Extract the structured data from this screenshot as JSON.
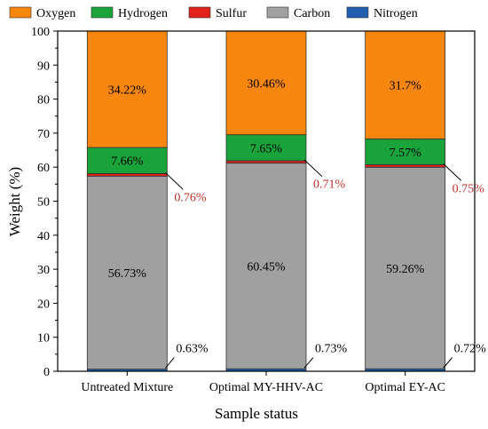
{
  "chart_data": {
    "type": "bar",
    "stacked": true,
    "title": "",
    "xlabel": "Sample status",
    "ylabel": "Weight (%)",
    "ylim": [
      0,
      100
    ],
    "yticks": [
      0,
      10,
      20,
      30,
      40,
      50,
      60,
      70,
      80,
      90,
      100
    ],
    "categories": [
      "Untreated Mixture",
      "Optimal MY-HHV-AC",
      "Optimal EY-AC"
    ],
    "legend": {
      "position": "top",
      "order": [
        "Oxygen",
        "Hydrogen",
        "Sulfur",
        "Carbon",
        "Nitrogen"
      ]
    },
    "series": [
      {
        "name": "Nitrogen",
        "color": "#1f5fae",
        "values": [
          0.63,
          0.73,
          0.72
        ],
        "labels": [
          "0.63%",
          "0.73%",
          "0.72%"
        ]
      },
      {
        "name": "Carbon",
        "color": "#a0a0a0",
        "values": [
          56.73,
          60.45,
          59.26
        ],
        "labels": [
          "56.73%",
          "60.45%",
          "59.26%"
        ]
      },
      {
        "name": "Sulfur",
        "color": "#e0221b",
        "values": [
          0.76,
          0.71,
          0.75
        ],
        "labels": [
          "0.76%",
          "0.71%",
          "0.75%"
        ]
      },
      {
        "name": "Hydrogen",
        "color": "#1aa33a",
        "values": [
          7.66,
          7.65,
          7.57
        ],
        "labels": [
          "7.66%",
          "7.65%",
          "7.57%"
        ]
      },
      {
        "name": "Oxygen",
        "color": "#f7860f",
        "values": [
          34.22,
          30.46,
          31.7
        ],
        "labels": [
          "34.22%",
          "30.46%",
          "31.7%"
        ]
      }
    ]
  }
}
